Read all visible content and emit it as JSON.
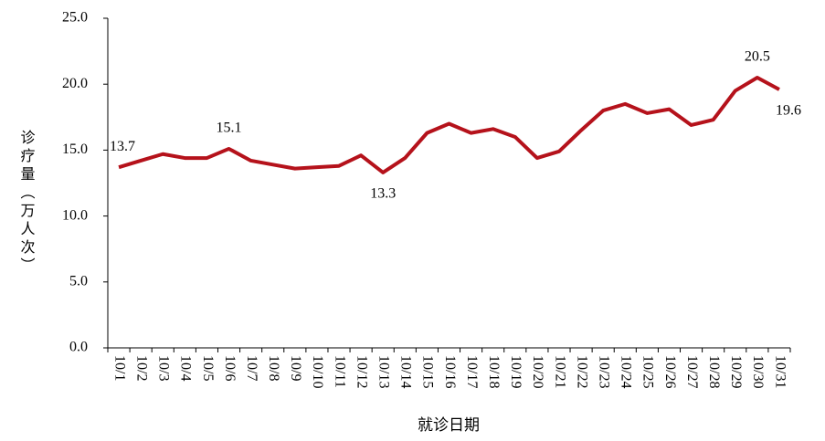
{
  "chart_data": {
    "type": "line",
    "x_label": "就诊日期",
    "y_label": "诊疗量（万人次）",
    "categories": [
      "10/1",
      "10/2",
      "10/3",
      "10/4",
      "10/5",
      "10/6",
      "10/7",
      "10/8",
      "10/9",
      "10/10",
      "10/11",
      "10/12",
      "10/13",
      "10/14",
      "10/15",
      "10/16",
      "10/17",
      "10/18",
      "10/19",
      "10/20",
      "10/21",
      "10/22",
      "10/23",
      "10/24",
      "10/25",
      "10/26",
      "10/27",
      "10/28",
      "10/29",
      "10/30",
      "10/31"
    ],
    "values": [
      13.7,
      14.2,
      14.7,
      14.4,
      14.4,
      15.1,
      14.2,
      13.9,
      13.6,
      13.7,
      13.8,
      14.6,
      13.3,
      14.4,
      16.3,
      17.0,
      16.3,
      16.6,
      16.0,
      14.4,
      14.9,
      16.5,
      18.0,
      18.5,
      17.8,
      18.1,
      16.9,
      17.3,
      19.5,
      20.5,
      19.6
    ],
    "value_labels": [
      "13.7",
      null,
      null,
      null,
      null,
      "15.1",
      null,
      null,
      null,
      null,
      null,
      null,
      "13.3",
      null,
      null,
      null,
      null,
      null,
      null,
      null,
      null,
      null,
      null,
      null,
      null,
      null,
      null,
      null,
      null,
      "20.5",
      "19.6"
    ],
    "color": "#b5121b",
    "ylim": [
      0,
      25
    ],
    "yticks": [
      {
        "value": 0,
        "label": "0.0"
      },
      {
        "value": 5,
        "label": "5.0"
      },
      {
        "value": 10,
        "label": "10.0"
      },
      {
        "value": 15,
        "label": "15.0"
      },
      {
        "value": 20,
        "label": "20.0"
      },
      {
        "value": 25,
        "label": "25.0"
      }
    ],
    "grid": false
  }
}
